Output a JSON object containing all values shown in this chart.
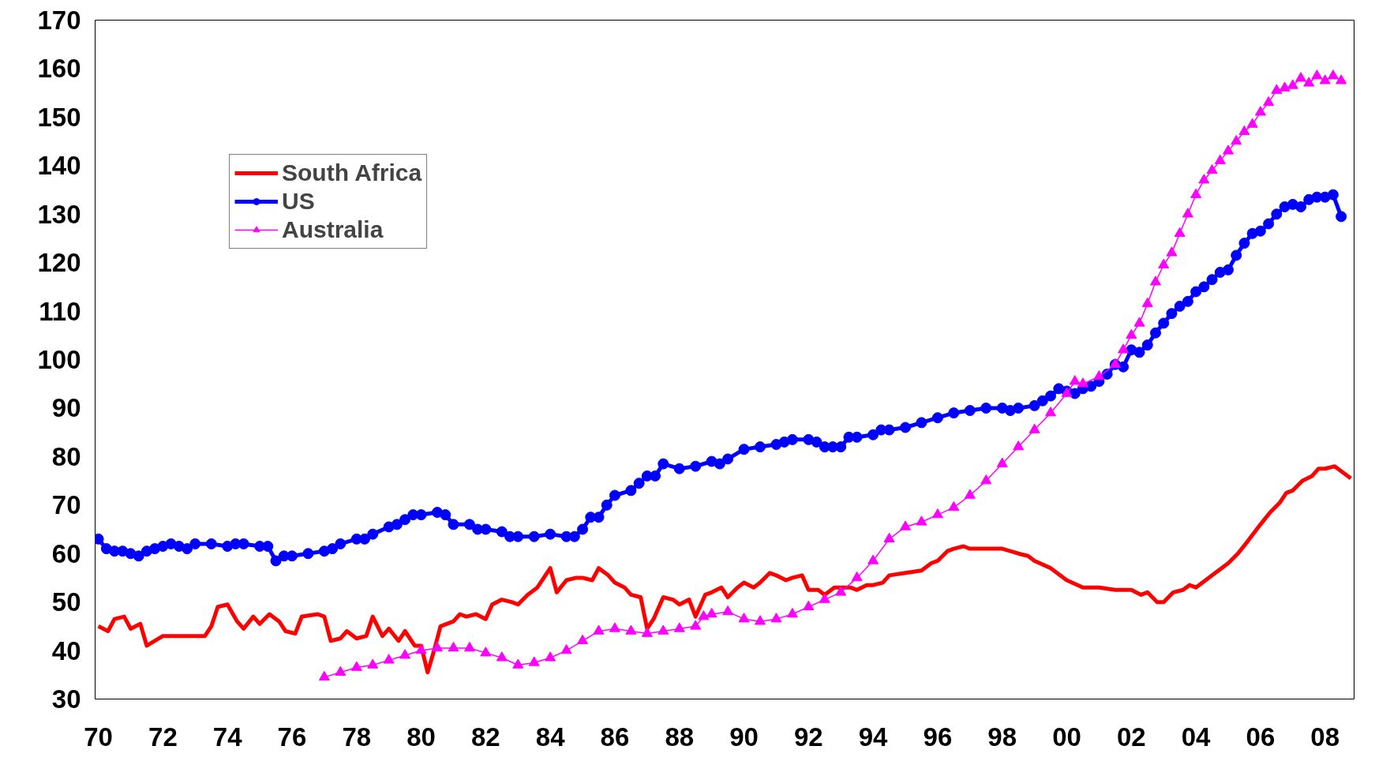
{
  "chart_data": {
    "type": "line",
    "xlim": [
      1969.9,
      2008.9
    ],
    "ylim": [
      30,
      170
    ],
    "xticks": [
      {
        "value": 1970,
        "label": "70"
      },
      {
        "value": 1972,
        "label": "72"
      },
      {
        "value": 1974,
        "label": "74"
      },
      {
        "value": 1976,
        "label": "76"
      },
      {
        "value": 1978,
        "label": "78"
      },
      {
        "value": 1980,
        "label": "80"
      },
      {
        "value": 1982,
        "label": "82"
      },
      {
        "value": 1984,
        "label": "84"
      },
      {
        "value": 1986,
        "label": "86"
      },
      {
        "value": 1988,
        "label": "88"
      },
      {
        "value": 1990,
        "label": "90"
      },
      {
        "value": 1992,
        "label": "92"
      },
      {
        "value": 1994,
        "label": "94"
      },
      {
        "value": 1996,
        "label": "96"
      },
      {
        "value": 1998,
        "label": "98"
      },
      {
        "value": 2000,
        "label": "00"
      },
      {
        "value": 2002,
        "label": "02"
      },
      {
        "value": 2004,
        "label": "04"
      },
      {
        "value": 2006,
        "label": "06"
      },
      {
        "value": 2008,
        "label": "08"
      }
    ],
    "yticks": [
      30,
      40,
      50,
      60,
      70,
      80,
      90,
      100,
      110,
      120,
      130,
      140,
      150,
      160,
      170
    ],
    "grid": false,
    "legend": "top left",
    "series": [
      {
        "name": "South Africa",
        "color": "#ff0000",
        "marker": "none",
        "x": [
          1970.0,
          1970.3,
          1970.5,
          1970.8,
          1971.0,
          1971.3,
          1971.5,
          1972.0,
          1972.5,
          1973.0,
          1973.3,
          1973.5,
          1973.7,
          1974.0,
          1974.3,
          1974.5,
          1974.8,
          1975.0,
          1975.3,
          1975.6,
          1975.8,
          1976.1,
          1976.3,
          1976.8,
          1977.0,
          1977.2,
          1977.5,
          1977.7,
          1978.0,
          1978.3,
          1978.5,
          1978.8,
          1979.0,
          1979.3,
          1979.5,
          1979.8,
          1980.0,
          1980.2,
          1980.4,
          1980.6,
          1981.0,
          1981.2,
          1981.4,
          1981.7,
          1982.0,
          1982.2,
          1982.5,
          1982.8,
          1983.0,
          1983.3,
          1983.6,
          1983.8,
          1984.0,
          1984.2,
          1984.5,
          1984.8,
          1985.0,
          1985.3,
          1985.5,
          1985.8,
          1986.0,
          1986.3,
          1986.5,
          1986.8,
          1987.0,
          1987.2,
          1987.5,
          1987.8,
          1988.0,
          1988.3,
          1988.5,
          1988.8,
          1989.0,
          1989.3,
          1989.5,
          1989.8,
          1990.0,
          1990.3,
          1990.5,
          1990.8,
          1991.0,
          1991.3,
          1991.5,
          1991.8,
          1992.0,
          1992.3,
          1992.5,
          1992.8,
          1993.0,
          1993.3,
          1993.5,
          1993.8,
          1994.0,
          1994.3,
          1994.5,
          1995.0,
          1995.5,
          1995.8,
          1996.0,
          1996.3,
          1996.5,
          1996.8,
          1997.0,
          1997.5,
          1998.0,
          1998.5,
          1998.8,
          1999.0,
          1999.5,
          2000.0,
          2000.5,
          2001.0,
          2001.5,
          2002.0,
          2002.3,
          2002.5,
          2002.8,
          2003.0,
          2003.3,
          2003.6,
          2003.8,
          2004.0,
          2004.3,
          2004.6,
          2005.0,
          2005.3,
          2005.6,
          2006.0,
          2006.3,
          2006.6,
          2006.8,
          2007.0,
          2007.3,
          2007.6,
          2007.8,
          2008.0,
          2008.3,
          2008.8
        ],
        "values": [
          45,
          44,
          46.5,
          47,
          44.5,
          45.5,
          41,
          43,
          43,
          43,
          43,
          45,
          49,
          49.5,
          46,
          44.5,
          47,
          45.5,
          47.5,
          46,
          44,
          43.5,
          47,
          47.5,
          47,
          42,
          42.5,
          44,
          42.5,
          43,
          47,
          43,
          44.5,
          42,
          44,
          41,
          41,
          35.5,
          40,
          45,
          46,
          47.5,
          47,
          47.5,
          46.5,
          49.5,
          50.5,
          50,
          49.5,
          51.5,
          53,
          55,
          57,
          52,
          54.5,
          55,
          55,
          54.5,
          57,
          55.5,
          54,
          53,
          51.5,
          51,
          44.5,
          46.5,
          51,
          50.5,
          49.5,
          50.5,
          47,
          51.5,
          52,
          53,
          51,
          53,
          54,
          53,
          54,
          56,
          55.5,
          54.5,
          55,
          55.5,
          52.5,
          52.5,
          51.5,
          53,
          53,
          53,
          52.5,
          53.5,
          53.5,
          54,
          55.5,
          56,
          56.5,
          58,
          58.5,
          60.5,
          61,
          61.5,
          61,
          61,
          61,
          60,
          59.5,
          58.5,
          57,
          54.5,
          53,
          53,
          52.5,
          52.5,
          51.5,
          52,
          50,
          50,
          52,
          52.5,
          53.5,
          53,
          54.5,
          56,
          58,
          60,
          62.5,
          66,
          68.5,
          70.5,
          72.5,
          73,
          75,
          76,
          77.5,
          77.5,
          78,
          75.5
        ]
      },
      {
        "name": "US",
        "color": "#0000ff",
        "marker": "circle",
        "x": [
          1970.0,
          1970.25,
          1970.5,
          1970.75,
          1971.0,
          1971.25,
          1971.5,
          1971.75,
          1972.0,
          1972.25,
          1972.5,
          1972.75,
          1973.0,
          1973.5,
          1974.0,
          1974.25,
          1974.5,
          1975.0,
          1975.25,
          1975.5,
          1975.75,
          1976.0,
          1976.5,
          1977.0,
          1977.25,
          1977.5,
          1978.0,
          1978.25,
          1978.5,
          1979.0,
          1979.25,
          1979.5,
          1979.75,
          1980.0,
          1980.5,
          1980.75,
          1981.0,
          1981.5,
          1981.75,
          1982.0,
          1982.5,
          1982.75,
          1983.0,
          1983.5,
          1984.0,
          1984.5,
          1984.75,
          1985.0,
          1985.25,
          1985.5,
          1985.75,
          1986.0,
          1986.5,
          1986.75,
          1987.0,
          1987.25,
          1987.5,
          1988.0,
          1988.5,
          1989.0,
          1989.25,
          1989.5,
          1990.0,
          1990.5,
          1991.0,
          1991.25,
          1991.5,
          1992.0,
          1992.25,
          1992.5,
          1992.75,
          1993.0,
          1993.25,
          1993.5,
          1994.0,
          1994.25,
          1994.5,
          1995.0,
          1995.5,
          1996.0,
          1996.5,
          1997.0,
          1997.5,
          1998.0,
          1998.25,
          1998.5,
          1999.0,
          1999.25,
          1999.5,
          1999.75,
          2000.0,
          2000.25,
          2000.5,
          2000.75,
          2001.0,
          2001.25,
          2001.5,
          2001.75,
          2002.0,
          2002.25,
          2002.5,
          2002.75,
          2003.0,
          2003.25,
          2003.5,
          2003.75,
          2004.0,
          2004.25,
          2004.5,
          2004.75,
          2005.0,
          2005.25,
          2005.5,
          2005.75,
          2006.0,
          2006.25,
          2006.5,
          2006.75,
          2007.0,
          2007.25,
          2007.5,
          2007.75,
          2008.0,
          2008.25,
          2008.5
        ],
        "values": [
          63,
          61,
          60.5,
          60.5,
          60,
          59.5,
          60.5,
          61,
          61.5,
          62,
          61.5,
          61,
          62,
          62,
          61.5,
          62,
          62,
          61.5,
          61.5,
          58.5,
          59.5,
          59.5,
          60,
          60.5,
          61,
          62,
          63,
          63,
          64,
          65.5,
          66,
          67,
          68,
          68,
          68.5,
          68,
          66,
          66,
          65,
          65,
          64.5,
          63.5,
          63.5,
          63.5,
          64,
          63.5,
          63.5,
          65,
          67.5,
          67.5,
          70,
          72,
          73,
          74.5,
          76,
          76,
          78.5,
          77.5,
          78,
          79,
          78.5,
          79.5,
          81.5,
          82,
          82.5,
          83,
          83.5,
          83.5,
          83,
          82,
          82,
          82,
          84,
          84,
          84.5,
          85.5,
          85.5,
          86,
          87,
          88,
          89,
          89.5,
          90,
          90,
          89.5,
          90,
          90.5,
          91.5,
          92.5,
          94,
          93.5,
          93,
          94,
          94.5,
          95.5,
          97,
          99,
          98.5,
          102,
          101.5,
          103,
          105.5,
          107.5,
          109.5,
          111,
          112,
          114,
          115,
          116.5,
          118,
          118.5,
          121.5,
          124,
          126,
          126.5,
          128,
          130,
          131.5,
          132,
          131.5,
          133,
          133.5,
          133.5,
          134,
          129.5
        ]
      },
      {
        "name": "Australia",
        "color": "#ff00ff",
        "marker": "triangle",
        "x": [
          1977.0,
          1977.5,
          1978.0,
          1978.5,
          1979.0,
          1979.5,
          1980.0,
          1980.5,
          1981.0,
          1981.5,
          1982.0,
          1982.5,
          1983.0,
          1983.5,
          1984.0,
          1984.5,
          1985.0,
          1985.5,
          1986.0,
          1986.5,
          1987.0,
          1987.5,
          1988.0,
          1988.5,
          1988.75,
          1989.0,
          1989.5,
          1990.0,
          1990.5,
          1991.0,
          1991.5,
          1992.0,
          1992.5,
          1993.0,
          1993.5,
          1994.0,
          1994.5,
          1995.0,
          1995.5,
          1996.0,
          1996.5,
          1997.0,
          1997.5,
          1998.0,
          1998.5,
          1999.0,
          1999.5,
          2000.0,
          2000.25,
          2000.5,
          2001.0,
          2001.5,
          2001.75,
          2002.0,
          2002.25,
          2002.5,
          2002.75,
          2003.0,
          2003.25,
          2003.5,
          2003.75,
          2004.0,
          2004.25,
          2004.5,
          2004.75,
          2005.0,
          2005.25,
          2005.5,
          2005.75,
          2006.0,
          2006.25,
          2006.5,
          2006.75,
          2007.0,
          2007.25,
          2007.5,
          2007.75,
          2008.0,
          2008.25,
          2008.5
        ],
        "values": [
          34.5,
          35.5,
          36.5,
          37,
          38,
          39,
          40,
          40.5,
          40.5,
          40.5,
          39.5,
          38.5,
          37,
          37.5,
          38.5,
          40,
          42,
          44,
          44.5,
          44,
          43.5,
          44,
          44.5,
          45,
          47,
          47.5,
          48,
          46.5,
          46,
          46.5,
          47.5,
          49,
          50.5,
          52,
          55,
          58.5,
          63,
          65.5,
          66.5,
          68,
          69.5,
          72,
          75,
          78.5,
          82,
          85.5,
          89,
          93,
          95.5,
          95,
          96.5,
          99,
          102,
          105,
          107.5,
          111.5,
          116,
          119.5,
          122,
          126,
          130,
          134,
          137,
          139,
          141,
          143,
          145,
          147,
          148.5,
          151,
          153,
          155.5,
          156,
          156.5,
          158,
          157,
          158.5,
          157.5,
          158.5,
          157.5
        ]
      }
    ]
  }
}
